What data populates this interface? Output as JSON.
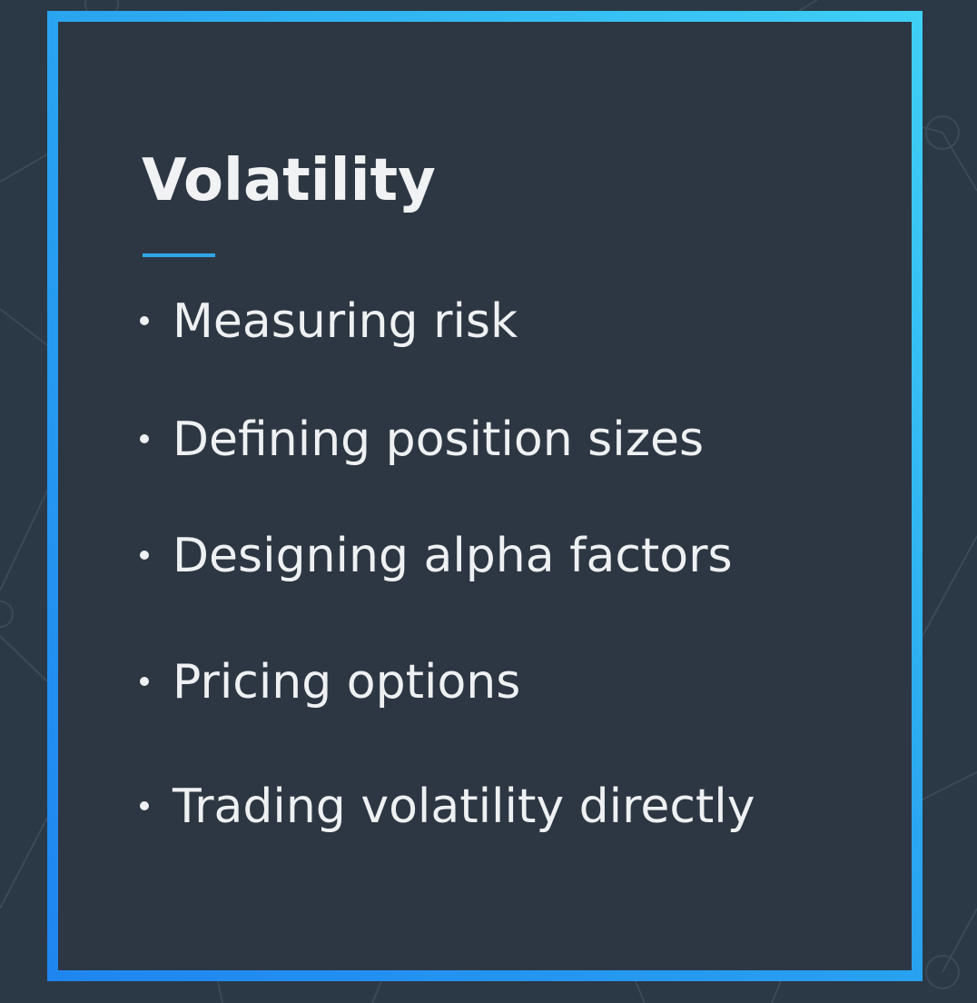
{
  "slide": {
    "title": "Volatility",
    "bullets": [
      "Measuring risk",
      "Defining position sizes",
      "Designing alpha factors",
      "Pricing options",
      "Trading volatility directly"
    ]
  },
  "colors": {
    "background": "#2b3845",
    "panel": "#2d3743",
    "frame_gradient_start": "#3fd0f5",
    "frame_gradient_end": "#1f85f0",
    "accent_rule": "#2ea6e8",
    "text": "#eef0f2"
  }
}
